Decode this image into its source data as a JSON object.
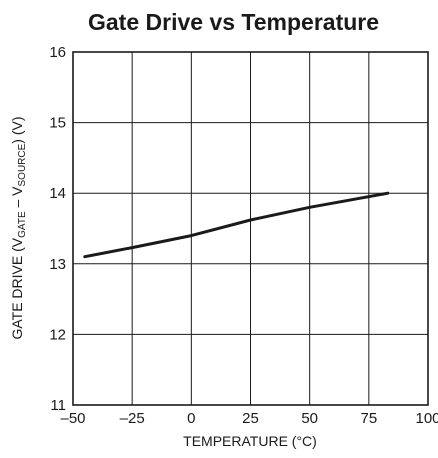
{
  "chart_data": {
    "type": "line",
    "title": "Gate Drive vs Temperature",
    "xlabel": "TEMPERATURE (°C)",
    "ylabel": {
      "prefix": "GATE DRIVE (V",
      "sub1": "GATE",
      "mid": " – V",
      "sub2": "SOURCE",
      "suffix": ") (V)"
    },
    "xlim": [
      -50,
      100
    ],
    "ylim": [
      11,
      16
    ],
    "xticks": [
      "–50",
      "–25",
      "0",
      "25",
      "50",
      "75",
      "100"
    ],
    "yticks": [
      "11",
      "12",
      "13",
      "14",
      "15",
      "16"
    ],
    "grid": true,
    "series": [
      {
        "x": [
          -45,
          -25,
          0,
          25,
          50,
          83
        ],
        "y": [
          13.1,
          13.23,
          13.4,
          13.62,
          13.8,
          14.0
        ]
      }
    ]
  }
}
